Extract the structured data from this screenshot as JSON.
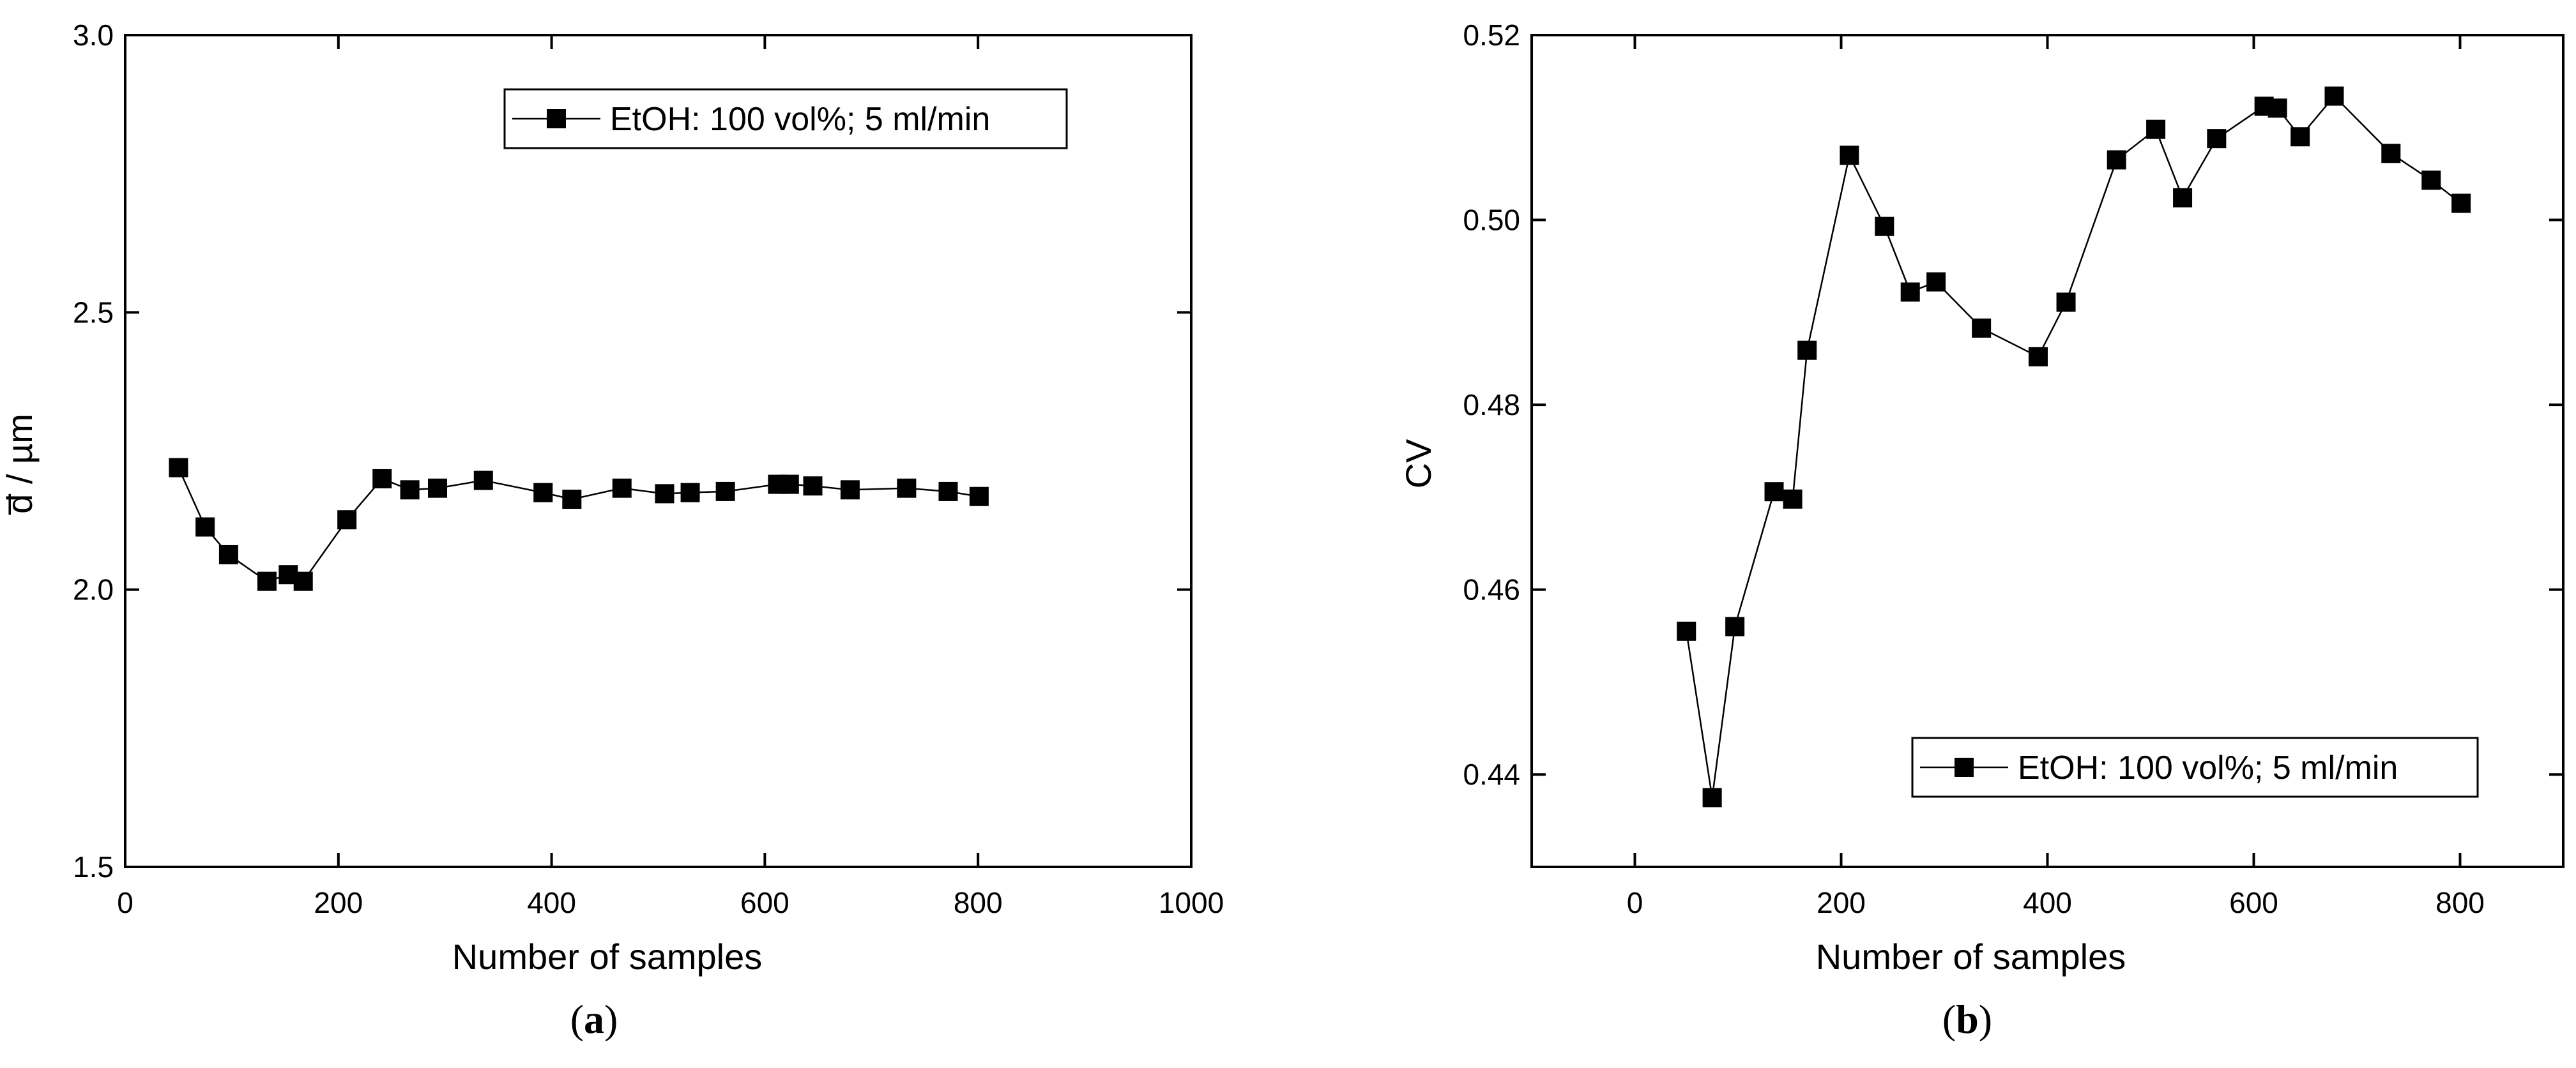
{
  "chart_data": [
    {
      "type": "line",
      "panel_label": "a",
      "xlabel": "Number of samples",
      "ylabel": "d̅ / µm",
      "xlim": [
        0,
        1000
      ],
      "ylim": [
        1.5,
        3.0
      ],
      "xticks": [
        "0",
        "200",
        "400",
        "600",
        "800",
        "1000"
      ],
      "yticks": [
        "1.5",
        "2.0",
        "2.5",
        "3.0"
      ],
      "xtick_values": [
        0,
        200,
        400,
        600,
        800,
        1000
      ],
      "ytick_values": [
        1.5,
        2.0,
        2.5,
        3.0
      ],
      "grid": false,
      "legend_position": "top-right",
      "series": [
        {
          "name": "EtOH: 100 vol%; 5 ml/min",
          "marker": "square",
          "color": "#000000",
          "x": [
            50,
            75,
            97,
            133,
            153,
            167,
            208,
            241,
            267,
            293,
            336,
            392,
            419,
            466,
            506,
            530,
            563,
            612,
            623,
            645,
            680,
            733,
            772,
            801
          ],
          "y": [
            2.22,
            2.113,
            2.063,
            2.015,
            2.027,
            2.015,
            2.126,
            2.2,
            2.18,
            2.183,
            2.197,
            2.175,
            2.163,
            2.183,
            2.173,
            2.175,
            2.177,
            2.19,
            2.19,
            2.187,
            2.18,
            2.183,
            2.177,
            2.168
          ]
        }
      ]
    },
    {
      "type": "line",
      "panel_label": "b",
      "xlabel": "Number of samples",
      "ylabel": "CV",
      "xlim": [
        -100,
        900
      ],
      "ylim": [
        0.43,
        0.52
      ],
      "xticks": [
        "0",
        "200",
        "400",
        "600",
        "800"
      ],
      "yticks": [
        "0.44",
        "0.46",
        "0.48",
        "0.50",
        "0.52"
      ],
      "xtick_values": [
        0,
        200,
        400,
        600,
        800
      ],
      "ytick_values": [
        0.44,
        0.46,
        0.48,
        0.5,
        0.52
      ],
      "grid": false,
      "legend_position": "bottom-right",
      "series": [
        {
          "name": "EtOH: 100 vol%; 5 ml/min",
          "marker": "square",
          "color": "#000000",
          "x": [
            50,
            75,
            97,
            135,
            153,
            167,
            208,
            242,
            267,
            292,
            336,
            391,
            418,
            467,
            505,
            531,
            564,
            610,
            623,
            645,
            678,
            733,
            772,
            801
          ],
          "y": [
            0.4555,
            0.4375,
            0.456,
            0.4706,
            0.4698,
            0.4859,
            0.507,
            0.4993,
            0.4922,
            0.4933,
            0.4883,
            0.4852,
            0.4911,
            0.5065,
            0.5098,
            0.5024,
            0.5088,
            0.5123,
            0.5121,
            0.509,
            0.5134,
            0.5072,
            0.5043,
            0.5018
          ]
        }
      ]
    }
  ],
  "captions": {
    "a": "a",
    "b": "b"
  }
}
